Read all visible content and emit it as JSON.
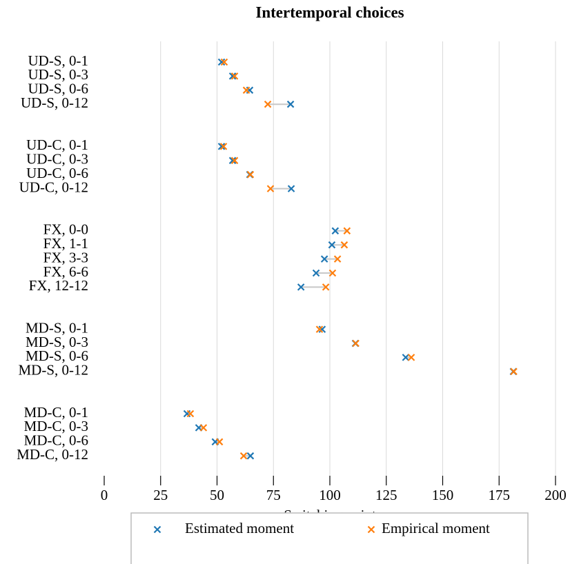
{
  "chart_data": {
    "type": "dot",
    "title": "Intertemporal choices",
    "xlabel": "Switching point",
    "categories": [
      "UD-S, 0-1",
      "UD-S, 0-3",
      "UD-S, 0-6",
      "UD-S, 0-12",
      null,
      null,
      "UD-C, 0-1",
      "UD-C, 0-3",
      "UD-C, 0-6",
      "UD-C, 0-12",
      null,
      null,
      "FX, 0-0",
      "FX, 1-1",
      "FX, 3-3",
      "FX, 6-6",
      "FX, 12-12",
      null,
      null,
      "MD-S, 0-1",
      "MD-S, 0-3",
      "MD-S, 0-6",
      "MD-S, 0-12",
      null,
      null,
      "MD-C, 0-1",
      "MD-C, 0-3",
      "MD-C, 0-6",
      "MD-C, 0-12"
    ],
    "series": [
      {
        "name": "Estimated moment",
        "color": "#1f77b4",
        "values": [
          52.0,
          56.9,
          64.5,
          82.6,
          null,
          null,
          52.0,
          56.9,
          64.5,
          82.9,
          null,
          null,
          102.4,
          100.9,
          97.6,
          93.9,
          87.2,
          null,
          null,
          96.6,
          111.3,
          133.6,
          181.3,
          null,
          null,
          36.7,
          41.9,
          49.2,
          64.8
        ]
      },
      {
        "name": "Empirical moment",
        "color": "#ff7f0e",
        "values": [
          53.2,
          57.8,
          63.0,
          72.5,
          null,
          null,
          52.9,
          57.8,
          64.8,
          73.7,
          null,
          null,
          107.6,
          106.4,
          103.4,
          101.2,
          98.2,
          null,
          null,
          95.4,
          111.5,
          136.1,
          181.5,
          null,
          null,
          38.2,
          44.0,
          51.1,
          61.8
        ]
      }
    ],
    "xlim": [
      0,
      200
    ],
    "xticks": [
      0,
      25,
      50,
      75,
      100,
      125,
      150,
      175,
      200
    ],
    "grid": true,
    "legend": "bottom"
  }
}
